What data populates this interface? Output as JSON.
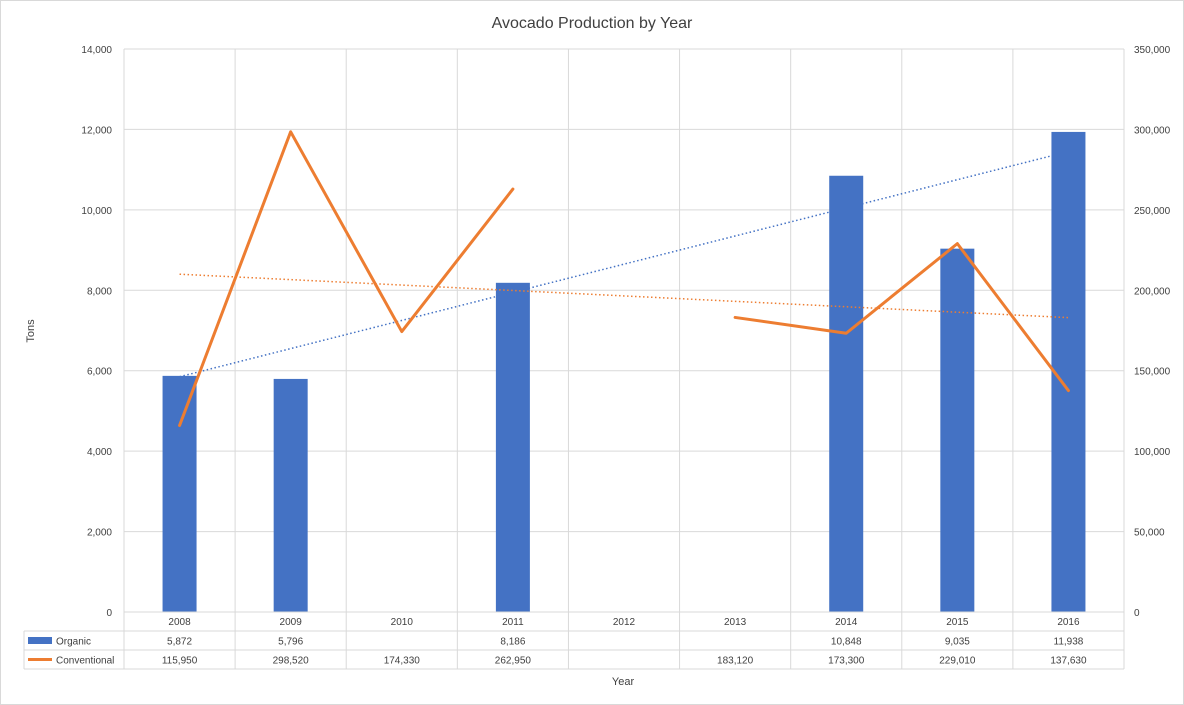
{
  "chart_data": {
    "type": "bar",
    "title": "Avocado Production by Year",
    "xlabel": "Year",
    "ylabel": "Tons",
    "categories": [
      "2008",
      "2009",
      "2010",
      "2011",
      "2012",
      "2013",
      "2014",
      "2015",
      "2016"
    ],
    "y_left": {
      "min": 0,
      "max": 14000,
      "step": 2000,
      "ticks": [
        "0",
        "2,000",
        "4,000",
        "6,000",
        "8,000",
        "10,000",
        "12,000",
        "14,000"
      ]
    },
    "y_right": {
      "min": 0,
      "max": 350000,
      "step": 50000,
      "ticks": [
        "0",
        "50,000",
        "100,000",
        "150,000",
        "200,000",
        "250,000",
        "300,000",
        "350,000"
      ]
    },
    "grid": true,
    "legend": "data-table",
    "series": [
      {
        "name": "Organic",
        "type": "bar",
        "axis": "left",
        "color": "#4472C4",
        "values": [
          5872,
          5796,
          null,
          8186,
          null,
          null,
          10848,
          9035,
          11938
        ],
        "labels": [
          "5,872",
          "5,796",
          "",
          "8,186",
          "",
          "",
          "10,848",
          "9,035",
          "11,938"
        ],
        "trendline": {
          "start": 5850,
          "end": 11450,
          "color": "#4472C4",
          "style": "dotted"
        }
      },
      {
        "name": "Conventional",
        "type": "line",
        "axis": "right",
        "color": "#ED7D31",
        "values": [
          115950,
          298520,
          174330,
          262950,
          null,
          183120,
          173300,
          229010,
          137630
        ],
        "labels": [
          "115,950",
          "298,520",
          "174,330",
          "262,950",
          "",
          "183,120",
          "173,300",
          "229,010",
          "137,630"
        ],
        "trendline": {
          "start": 210000,
          "end": 183000,
          "color": "#ED7D31",
          "style": "dotted"
        }
      }
    ]
  }
}
